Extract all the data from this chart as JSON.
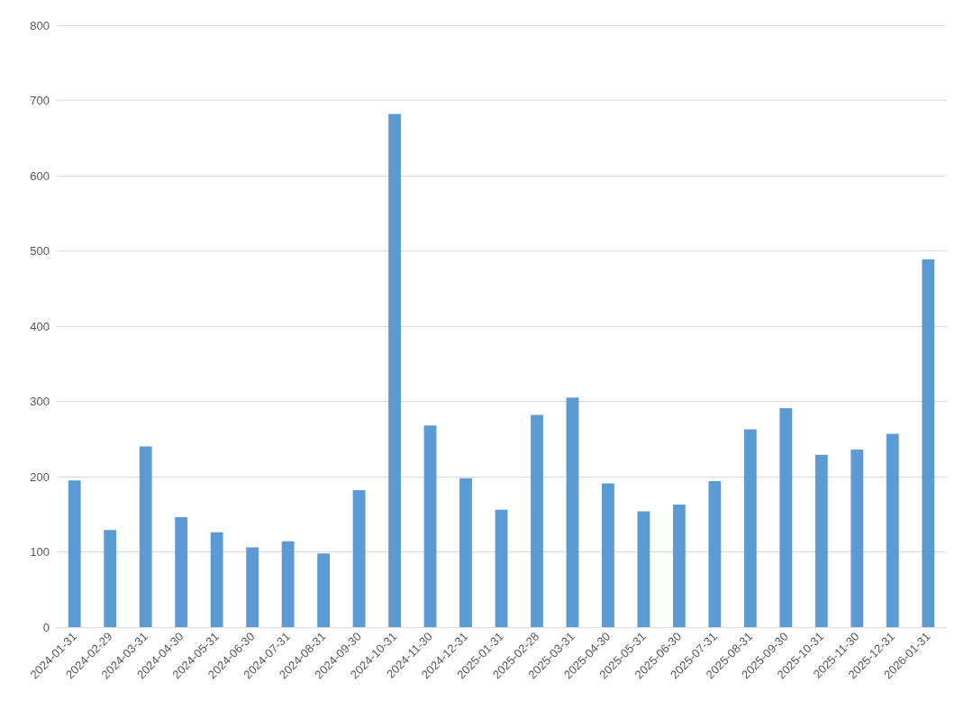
{
  "chart_data": {
    "type": "bar",
    "categories": [
      "2024-01-31",
      "2024-02-29",
      "2024-03-31",
      "2024-04-30",
      "2024-05-31",
      "2024-06-30",
      "2024-07-31",
      "2024-08-31",
      "2024-09-30",
      "2024-10-31",
      "2024-11-30",
      "2024-12-31",
      "2025-01-31",
      "2025-02-28",
      "2025-03-31",
      "2025-04-30",
      "2025-05-31",
      "2025-06-30",
      "2025-07-31",
      "2025-08-31",
      "2025-09-30",
      "2025-10-31",
      "2025-11-30",
      "2025-12-31",
      "2026-01-31"
    ],
    "values": [
      195,
      129,
      240,
      146,
      126,
      106,
      114,
      98,
      182,
      682,
      268,
      198,
      156,
      282,
      305,
      191,
      154,
      163,
      194,
      263,
      291,
      229,
      236,
      257,
      489
    ],
    "color": "#5b9bd5",
    "ylim": [
      0,
      800
    ],
    "yticks": [
      0,
      100,
      200,
      300,
      400,
      500,
      600,
      700,
      800
    ],
    "grid": "y"
  }
}
